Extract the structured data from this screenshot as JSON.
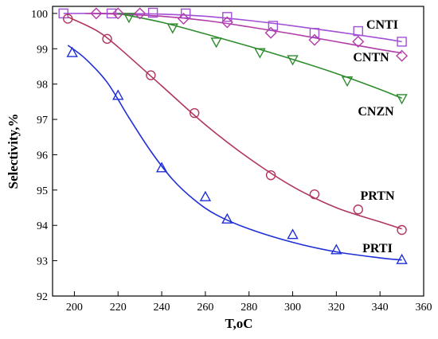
{
  "chart_data": {
    "type": "line",
    "xlabel": "T,oC",
    "ylabel": "Selectivity,%",
    "xlim": [
      190,
      360
    ],
    "ylim": [
      92,
      100.2
    ],
    "xticks": [
      200,
      220,
      240,
      260,
      280,
      300,
      320,
      340,
      360
    ],
    "yticks": [
      92,
      93,
      94,
      95,
      96,
      97,
      98,
      99,
      100
    ],
    "grid": false,
    "legend": "none",
    "series": [
      {
        "name": "CNTI",
        "color": "#a24fd6",
        "marker": "square",
        "points": [
          [
            195,
            100.0
          ],
          [
            217,
            100.0
          ],
          [
            236,
            100.02
          ],
          [
            251,
            100.0
          ],
          [
            270,
            99.9
          ],
          [
            291,
            99.65
          ],
          [
            310,
            99.45
          ],
          [
            330,
            99.5
          ],
          [
            350,
            99.2
          ]
        ],
        "curve": [
          [
            195,
            100.0
          ],
          [
            220,
            100.0
          ],
          [
            240,
            99.98
          ],
          [
            260,
            99.92
          ],
          [
            280,
            99.8
          ],
          [
            300,
            99.65
          ],
          [
            320,
            99.48
          ],
          [
            340,
            99.3
          ],
          [
            350,
            99.2
          ]
        ]
      },
      {
        "name": "CNTN",
        "color": "#b03ca8",
        "marker": "diamond",
        "points": [
          [
            210,
            100.0
          ],
          [
            220,
            100.0
          ],
          [
            230,
            100.0
          ],
          [
            250,
            99.85
          ],
          [
            270,
            99.75
          ],
          [
            290,
            99.45
          ],
          [
            310,
            99.25
          ],
          [
            330,
            99.2
          ],
          [
            350,
            98.8
          ]
        ],
        "curve": [
          [
            205,
            100.0
          ],
          [
            220,
            99.98
          ],
          [
            240,
            99.92
          ],
          [
            260,
            99.8
          ],
          [
            280,
            99.62
          ],
          [
            300,
            99.42
          ],
          [
            320,
            99.2
          ],
          [
            340,
            98.98
          ],
          [
            350,
            98.88
          ]
        ]
      },
      {
        "name": "CNZN",
        "color": "#2e8b2e",
        "marker": "triangle-down",
        "points": [
          [
            225,
            99.9
          ],
          [
            245,
            99.6
          ],
          [
            265,
            99.2
          ],
          [
            285,
            98.9
          ],
          [
            300,
            98.7
          ],
          [
            325,
            98.1
          ],
          [
            350,
            97.6
          ]
        ],
        "curve": [
          [
            220,
            100.0
          ],
          [
            240,
            99.75
          ],
          [
            260,
            99.42
          ],
          [
            280,
            99.07
          ],
          [
            300,
            98.7
          ],
          [
            320,
            98.3
          ],
          [
            340,
            97.85
          ],
          [
            350,
            97.6
          ]
        ]
      },
      {
        "name": "PRTN",
        "color": "#b0365c",
        "marker": "circle",
        "points": [
          [
            197,
            99.85
          ],
          [
            215,
            99.28
          ],
          [
            235,
            98.25
          ],
          [
            255,
            97.18
          ],
          [
            290,
            95.42
          ],
          [
            310,
            94.88
          ],
          [
            330,
            94.45
          ],
          [
            350,
            93.87
          ]
        ],
        "curve": [
          [
            197,
            99.9
          ],
          [
            210,
            99.52
          ],
          [
            220,
            99.05
          ],
          [
            240,
            97.95
          ],
          [
            260,
            96.85
          ],
          [
            280,
            95.9
          ],
          [
            300,
            95.1
          ],
          [
            320,
            94.5
          ],
          [
            340,
            94.1
          ],
          [
            350,
            93.9
          ]
        ]
      },
      {
        "name": "PRTI",
        "color": "#1f2fd6",
        "marker": "triangle",
        "points": [
          [
            199,
            98.88
          ],
          [
            220,
            97.67
          ],
          [
            240,
            95.62
          ],
          [
            260,
            94.8
          ],
          [
            270,
            94.17
          ],
          [
            300,
            93.73
          ],
          [
            320,
            93.3
          ],
          [
            350,
            93.02
          ]
        ],
        "curve": [
          [
            197,
            99.1
          ],
          [
            205,
            98.72
          ],
          [
            215,
            98.05
          ],
          [
            225,
            97.05
          ],
          [
            235,
            96.1
          ],
          [
            245,
            95.3
          ],
          [
            255,
            94.72
          ],
          [
            265,
            94.3
          ],
          [
            280,
            93.9
          ],
          [
            300,
            93.52
          ],
          [
            320,
            93.25
          ],
          [
            340,
            93.08
          ],
          [
            350,
            93.02
          ]
        ]
      }
    ]
  }
}
